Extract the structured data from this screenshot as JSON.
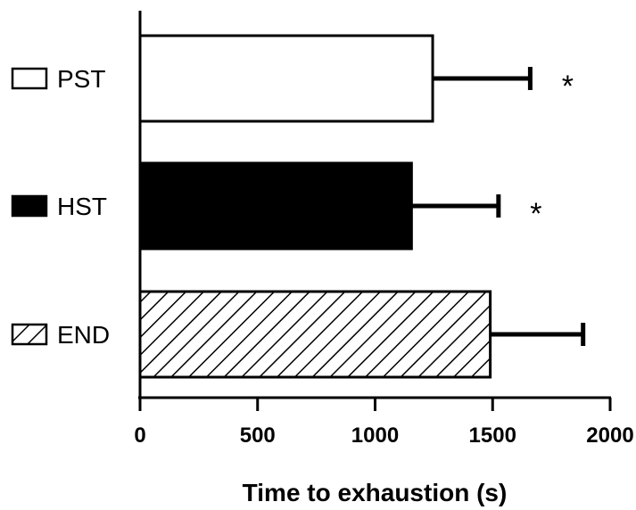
{
  "chart_data": {
    "type": "bar",
    "orientation": "horizontal",
    "categories": [
      "PST",
      "HST",
      "END"
    ],
    "values": [
      1245,
      1155,
      1490
    ],
    "error_upper": [
      1660,
      1525,
      1885
    ],
    "annotations": [
      "*",
      "*",
      ""
    ],
    "fills": [
      "white",
      "black",
      "hatched"
    ],
    "xlabel": "Time to exhaustion (s)",
    "ylabel": "",
    "xlim": [
      0,
      2000
    ],
    "xticks": [
      0,
      500,
      1000,
      1500,
      2000
    ],
    "xtick_labels": [
      "0",
      "500",
      "1000",
      "1500",
      "2000"
    ],
    "grid": false
  }
}
